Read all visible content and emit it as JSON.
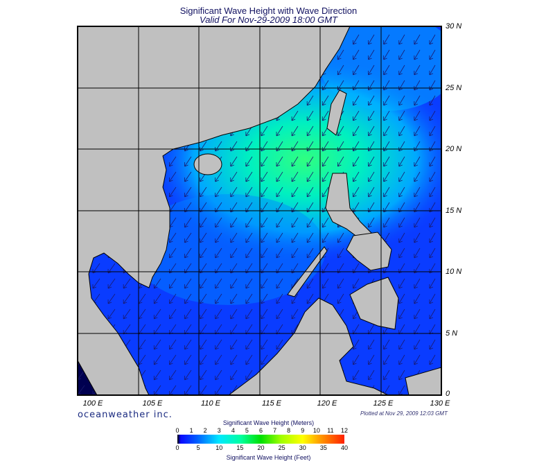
{
  "title": "Significant Wave Height with Wave Direction",
  "subtitle": "Valid For Nov-29-2009 18:00 GMT",
  "lon_labels": [
    "100 E",
    "105 E",
    "110 E",
    "115 E",
    "120 E",
    "125 E",
    "130 E"
  ],
  "lat_labels": [
    "30 N",
    "25 N",
    "20 N",
    "15 N",
    "10 N",
    "5 N",
    "0"
  ],
  "logo": "oceanweather inc.",
  "plotted": "Plotted at Nov 29, 2009 12:03 GMT",
  "colorbar": {
    "meters_title": "Significant Wave Height (Meters)",
    "feet_title": "Significant Wave Height (Feet)",
    "meters_ticks": [
      "0",
      "1",
      "2",
      "3",
      "4",
      "5",
      "6",
      "7",
      "8",
      "9",
      "10",
      "11",
      "12"
    ],
    "feet_ticks": [
      "0",
      "5",
      "10",
      "15",
      "20",
      "25",
      "30",
      "35",
      "40"
    ],
    "colors": [
      "#000000",
      "#0a0aff",
      "#00e8ff",
      "#00e000",
      "#ffff00",
      "#ff2000"
    ]
  },
  "colors": {
    "land": "#c0c0c0",
    "sea_low": "#0a3cff",
    "arrow": "#1a1a6e"
  }
}
